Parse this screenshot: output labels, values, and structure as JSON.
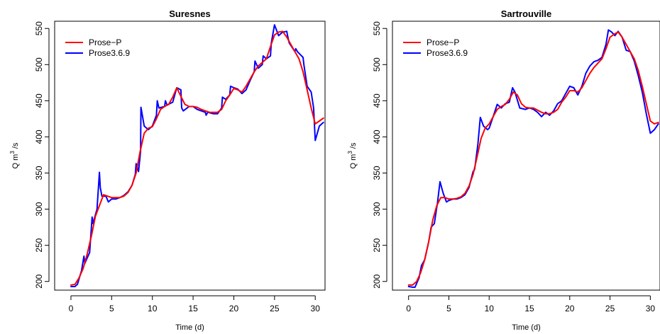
{
  "chart_data": [
    {
      "type": "line",
      "title": "Suresnes",
      "xlabel": "Time (d)",
      "ylabel_main": "Q m",
      "ylabel_sup": "3",
      "ylabel_end": " /s",
      "xlim": [
        -2,
        31.2
      ],
      "ylim": [
        188,
        560
      ],
      "xticks": [
        0,
        5,
        10,
        15,
        20,
        25,
        30
      ],
      "yticks": [
        200,
        250,
        300,
        350,
        400,
        450,
        500,
        550
      ],
      "legend_position": "top-left",
      "series": [
        {
          "name": "Prose−P",
          "color": "#ff0000",
          "x": [
            0,
            0.5,
            1,
            1.5,
            2,
            2.5,
            3,
            3.5,
            4,
            4.5,
            5,
            5.5,
            6,
            6.5,
            7,
            7.5,
            8,
            8.5,
            9,
            9.5,
            10,
            10.5,
            11,
            11.5,
            12,
            12.5,
            13,
            13.5,
            14,
            14.5,
            15,
            15.5,
            16,
            16.5,
            17,
            17.5,
            18,
            18.5,
            19,
            19.5,
            20,
            20.5,
            21,
            21.5,
            22,
            22.5,
            23,
            23.5,
            24,
            24.5,
            25,
            25.5,
            26,
            26.5,
            27,
            27.5,
            28,
            28.5,
            29,
            29.5,
            30,
            30.5,
            31
          ],
          "y": [
            195,
            196,
            205,
            218,
            238,
            262,
            290,
            305,
            320,
            318,
            316,
            316,
            316,
            318,
            323,
            333,
            350,
            380,
            405,
            412,
            414,
            425,
            438,
            442,
            445,
            455,
            468,
            456,
            445,
            442,
            442,
            441,
            438,
            436,
            434,
            434,
            434,
            438,
            450,
            458,
            467,
            465,
            462,
            470,
            480,
            490,
            498,
            503,
            508,
            525,
            541,
            545,
            546,
            538,
            528,
            518,
            508,
            490,
            465,
            440,
            418,
            422,
            426
          ]
        },
        {
          "name": "Prose3.6.9",
          "color": "#0000ff",
          "x": [
            0,
            0.5,
            0.8,
            1.3,
            1.6,
            1.7,
            2.3,
            2.6,
            2.7,
            3.2,
            3.5,
            3.6,
            3.8,
            4.3,
            4.6,
            5,
            5.5,
            6,
            6.5,
            7,
            7.5,
            7.9,
            8,
            8.3,
            8.55,
            8.6,
            9,
            9.5,
            10,
            10.5,
            10.6,
            10.8,
            11.5,
            11.6,
            11.8,
            12.5,
            13,
            13.5,
            13.6,
            13.8,
            14.5,
            15,
            15.5,
            16,
            16.5,
            16.6,
            16.8,
            17.5,
            18,
            18.5,
            18.6,
            19,
            19.5,
            19.6,
            20,
            20.5,
            21,
            21.5,
            22,
            22.5,
            22.6,
            23,
            23.5,
            23.6,
            24,
            24.5,
            24.6,
            25,
            25.5,
            26,
            26.5,
            26.6,
            26.8,
            27.5,
            27.6,
            27.8,
            28.5,
            28.6,
            29,
            29.5,
            29.8,
            30,
            30.5,
            31
          ],
          "y": [
            193,
            193,
            196,
            215,
            235,
            225,
            240,
            289,
            280,
            300,
            351,
            330,
            318,
            318,
            310,
            314,
            314,
            316,
            319,
            324,
            333,
            348,
            363,
            352,
            380,
            441,
            415,
            410,
            415,
            430,
            450,
            440,
            442,
            450,
            444,
            448,
            468,
            465,
            440,
            436,
            442,
            442,
            438,
            436,
            434,
            430,
            434,
            432,
            432,
            440,
            455,
            452,
            458,
            470,
            468,
            466,
            460,
            465,
            478,
            490,
            505,
            495,
            500,
            512,
            508,
            512,
            530,
            555,
            540,
            545,
            546,
            540,
            530,
            518,
            522,
            518,
            510,
            500,
            470,
            462,
            440,
            395,
            415,
            420
          ]
        }
      ]
    },
    {
      "type": "line",
      "title": "Sartrouville",
      "xlabel": "Time (d)",
      "ylabel_main": "Q m",
      "ylabel_sup": "3",
      "ylabel_end": " /s",
      "xlim": [
        -2,
        31.2
      ],
      "ylim": [
        188,
        560
      ],
      "xticks": [
        0,
        5,
        10,
        15,
        20,
        25,
        30
      ],
      "yticks": [
        200,
        250,
        300,
        350,
        400,
        450,
        500,
        550
      ],
      "legend_position": "top-left",
      "series": [
        {
          "name": "Prose−P",
          "color": "#ff0000",
          "x": [
            0,
            0.5,
            1,
            1.5,
            2,
            2.5,
            3,
            3.5,
            4,
            4.5,
            5,
            5.5,
            6,
            6.5,
            7,
            7.5,
            8,
            8.5,
            9,
            9.5,
            10,
            10.5,
            11,
            11.5,
            12,
            12.5,
            13,
            13.5,
            14,
            14.5,
            15,
            15.5,
            16,
            16.5,
            17,
            17.5,
            18,
            18.5,
            19,
            19.5,
            20,
            20.5,
            21,
            21.5,
            22,
            22.5,
            23,
            23.5,
            24,
            24.5,
            25,
            25.5,
            26,
            26.5,
            27,
            27.5,
            28,
            28.5,
            29,
            29.5,
            30,
            30.5,
            31
          ],
          "y": [
            195,
            195,
            200,
            212,
            230,
            255,
            285,
            305,
            316,
            316,
            314,
            314,
            315,
            317,
            322,
            332,
            348,
            372,
            398,
            412,
            418,
            428,
            438,
            442,
            445,
            452,
            462,
            458,
            446,
            441,
            440,
            440,
            437,
            434,
            432,
            432,
            434,
            438,
            448,
            455,
            464,
            464,
            462,
            468,
            478,
            488,
            496,
            502,
            508,
            522,
            538,
            542,
            545,
            538,
            528,
            518,
            508,
            492,
            470,
            446,
            422,
            418,
            420
          ]
        },
        {
          "name": "Prose3.6.9",
          "color": "#0000ff",
          "x": [
            0,
            0.5,
            0.8,
            1.3,
            1.6,
            2,
            2.5,
            2.8,
            3.2,
            3.6,
            3.9,
            4.3,
            4.7,
            5,
            5.5,
            6,
            6.5,
            7,
            7.5,
            8,
            8.2,
            8.6,
            8.9,
            9.3,
            9.8,
            10,
            10.5,
            11,
            11.5,
            12,
            12.5,
            12.9,
            13.2,
            13.8,
            14.5,
            15,
            15.5,
            16,
            16.5,
            17,
            17.5,
            18,
            18.5,
            19,
            19.5,
            20,
            20.5,
            21,
            21.5,
            22,
            22.5,
            23,
            23.5,
            24,
            24.5,
            24.8,
            25.2,
            25.6,
            26,
            26.5,
            27,
            27.5,
            28,
            28.5,
            29,
            29.5,
            30,
            30.5,
            31
          ],
          "y": [
            193,
            192,
            192,
            205,
            222,
            230,
            255,
            275,
            280,
            310,
            338,
            322,
            310,
            312,
            314,
            314,
            316,
            320,
            330,
            352,
            355,
            390,
            427,
            415,
            410,
            412,
            428,
            445,
            440,
            446,
            448,
            468,
            462,
            440,
            438,
            440,
            438,
            434,
            428,
            434,
            430,
            436,
            446,
            450,
            460,
            470,
            468,
            458,
            470,
            488,
            498,
            504,
            506,
            510,
            528,
            548,
            545,
            540,
            546,
            538,
            520,
            518,
            505,
            485,
            462,
            432,
            405,
            410,
            418
          ]
        }
      ]
    }
  ]
}
